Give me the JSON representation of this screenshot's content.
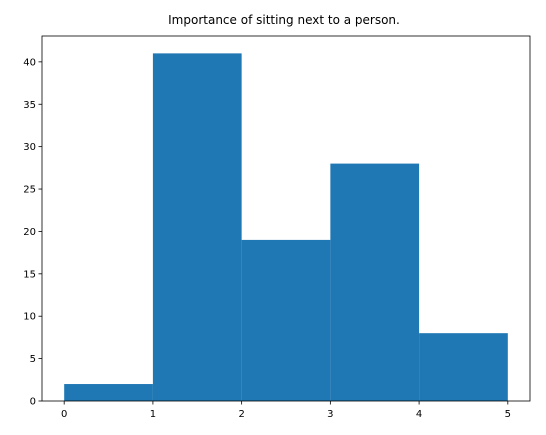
{
  "chart_data": {
    "type": "bar",
    "title": "Importance of sitting next to a person.",
    "xlabel": "",
    "ylabel": "",
    "bins": [
      {
        "start": 0,
        "end": 1,
        "value": 2
      },
      {
        "start": 1,
        "end": 2,
        "value": 41
      },
      {
        "start": 2,
        "end": 3,
        "value": 19
      },
      {
        "start": 3,
        "end": 4,
        "value": 28
      },
      {
        "start": 4,
        "end": 5,
        "value": 8
      }
    ],
    "xlim": [
      -0.25,
      5.25
    ],
    "ylim": [
      0,
      43.05
    ],
    "xticks": [
      0,
      1,
      2,
      3,
      4,
      5
    ],
    "yticks": [
      0,
      5,
      10,
      15,
      20,
      25,
      30,
      35,
      40
    ],
    "grid": false,
    "bar_color": "#1f77b4"
  }
}
